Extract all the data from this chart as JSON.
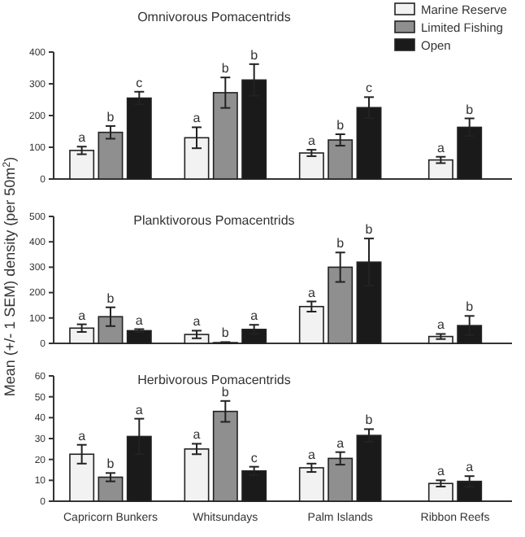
{
  "chart_data": [
    {
      "type": "bar",
      "title": "Omnivorous Pomacentrids",
      "categories": [
        null,
        null,
        null,
        null
      ],
      "ylim": [
        0,
        400
      ],
      "yticks": [
        0,
        100,
        200,
        300,
        400
      ],
      "tick_labels": "y",
      "legend": "top right",
      "series": [
        {
          "name": "Marine Reserve",
          "color": "#f2f2f2",
          "values": [
            90,
            130,
            82,
            60
          ],
          "errors": [
            12,
            33,
            10,
            10
          ],
          "value_labels": [
            "a",
            "a",
            "a",
            "a"
          ]
        },
        {
          "name": "Limited Fishing",
          "color": "#8f8f8f",
          "values": [
            147,
            272,
            123,
            null
          ],
          "errors": [
            20,
            48,
            18,
            null
          ],
          "value_labels": [
            "b",
            "b",
            "b",
            null
          ]
        },
        {
          "name": "Open",
          "color": "#1a1a1a",
          "values": [
            255,
            312,
            225,
            163
          ],
          "errors": [
            20,
            50,
            33,
            28
          ],
          "value_labels": [
            "c",
            "b",
            "c",
            "b"
          ]
        }
      ]
    },
    {
      "type": "bar",
      "title": "Planktivorous Pomacentrids",
      "ylabel": "Mean (+/- 1 SEM) density (per 50m$^{2}$)",
      "categories": [
        null,
        null,
        null,
        null
      ],
      "ylim": [
        0,
        500
      ],
      "yticks": [
        0,
        100,
        200,
        300,
        400,
        500
      ],
      "tick_labels": "y",
      "series": [
        {
          "color": "#f2f2f2",
          "values": [
            60,
            35,
            145,
            27
          ],
          "errors": [
            15,
            15,
            20,
            10
          ],
          "value_labels": [
            "a",
            "a",
            "a",
            "a"
          ]
        },
        {
          "color": "#8f8f8f",
          "values": [
            105,
            3,
            300,
            null
          ],
          "errors": [
            37,
            2,
            58,
            null
          ],
          "value_labels": [
            "b",
            "b",
            "b",
            null
          ]
        },
        {
          "color": "#1a1a1a",
          "values": [
            50,
            55,
            320,
            70
          ],
          "errors": [
            6,
            18,
            93,
            38
          ],
          "value_labels": [
            "a",
            "a",
            "b",
            "b"
          ]
        }
      ]
    },
    {
      "type": "bar",
      "title": "Herbivorous Pomacentrids",
      "categories": [
        "Capricorn Bunkers",
        "Whitsundays",
        "Palm Islands",
        "Ribbon  Reefs"
      ],
      "ylim": [
        0,
        60
      ],
      "yticks": [
        0,
        10,
        20,
        30,
        40,
        50,
        60
      ],
      "series": [
        {
          "color": "#f2f2f2",
          "values": [
            22.5,
            25,
            16,
            8.5
          ],
          "errors": [
            4.5,
            2.5,
            2,
            1.5
          ],
          "value_labels": [
            "a",
            "a",
            "a",
            "a"
          ]
        },
        {
          "color": "#8f8f8f",
          "values": [
            11.5,
            43,
            20.5,
            null
          ],
          "errors": [
            2,
            5,
            3,
            null
          ],
          "value_labels": [
            "b",
            "b",
            "a",
            null
          ]
        },
        {
          "color": "#1a1a1a",
          "values": [
            31,
            14.5,
            31.5,
            9.5
          ],
          "errors": [
            8.5,
            2,
            3,
            2.5
          ],
          "value_labels": [
            "a",
            "c",
            "b",
            "a"
          ]
        }
      ]
    }
  ]
}
